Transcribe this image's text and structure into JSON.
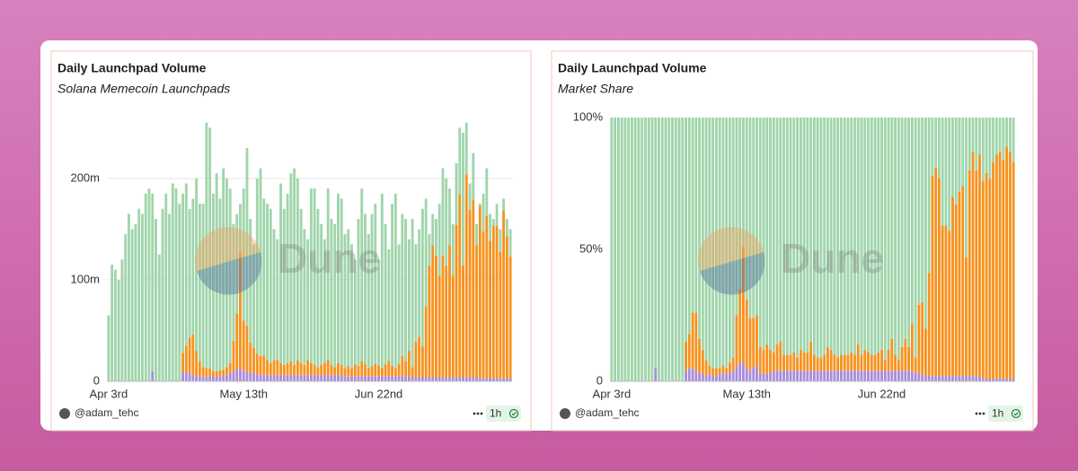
{
  "chart_data": [
    {
      "type": "bar",
      "stacked": true,
      "title": "Daily Launchpad Volume",
      "subtitle": "Solana Memecoin Launchpads",
      "watermark": "Dune",
      "author": "@adam_tehc",
      "refresh": "1h",
      "categories": [
        "Apr 3rd",
        null,
        null,
        null,
        null,
        null,
        null,
        null,
        null,
        null,
        null,
        null,
        null,
        null,
        null,
        null,
        null,
        null,
        null,
        null,
        null,
        null,
        null,
        null,
        null,
        null,
        null,
        null,
        null,
        null,
        null,
        null,
        null,
        null,
        null,
        null,
        null,
        null,
        null,
        null,
        "May 13th",
        null,
        null,
        null,
        null,
        null,
        null,
        null,
        null,
        null,
        null,
        null,
        null,
        null,
        null,
        null,
        null,
        null,
        null,
        null,
        null,
        null,
        null,
        null,
        null,
        null,
        null,
        null,
        null,
        null,
        null,
        null,
        null,
        null,
        null,
        null,
        null,
        null,
        null,
        null,
        "Jun 22nd",
        null,
        null,
        null,
        null,
        null,
        null,
        null,
        null,
        null,
        null,
        null,
        null,
        null,
        null,
        null,
        null,
        null,
        null,
        null,
        null,
        null,
        null,
        null,
        null,
        null,
        null,
        null,
        null,
        null,
        null,
        null,
        null,
        null,
        null,
        null,
        null,
        null,
        null,
        null
      ],
      "ylim": [
        0,
        260
      ],
      "yticks": [
        0,
        {
          "value": 100,
          "label": "100m"
        },
        {
          "value": 200,
          "label": "200m"
        }
      ],
      "grid": true,
      "series": [
        {
          "color": "#a98bdc",
          "values": [
            0,
            0,
            0,
            0,
            0,
            0,
            0,
            0,
            0,
            0,
            0,
            0,
            0,
            10,
            0,
            0,
            0,
            0,
            0,
            0,
            0,
            0,
            8,
            10,
            8,
            6,
            5,
            5,
            4,
            5,
            5,
            5,
            5,
            5,
            6,
            6,
            8,
            10,
            12,
            13,
            10,
            10,
            8,
            8,
            7,
            7,
            6,
            6,
            6,
            6,
            6,
            6,
            6,
            6,
            6,
            6,
            6,
            6,
            6,
            6,
            6,
            6,
            6,
            6,
            6,
            6,
            6,
            6,
            6,
            6,
            5,
            5,
            5,
            5,
            5,
            5,
            5,
            5,
            5,
            5,
            5,
            5,
            5,
            5,
            5,
            5,
            5,
            5,
            5,
            5,
            4,
            4,
            4,
            4,
            4,
            4,
            4,
            4,
            4,
            4,
            4,
            4,
            4,
            4,
            4,
            4,
            4,
            4,
            4,
            4,
            3,
            3,
            3,
            3,
            3,
            3,
            3,
            3,
            3,
            3
          ]
        },
        {
          "color": "#f7921e",
          "values": [
            0,
            0,
            0,
            0,
            0,
            0,
            0,
            0,
            0,
            0,
            0,
            0,
            0,
            0,
            0,
            0,
            0,
            0,
            0,
            0,
            0,
            0,
            20,
            25,
            35,
            40,
            25,
            15,
            10,
            8,
            8,
            5,
            5,
            6,
            5,
            8,
            10,
            30,
            55,
            115,
            50,
            45,
            30,
            25,
            20,
            18,
            20,
            15,
            12,
            15,
            15,
            12,
            10,
            12,
            14,
            10,
            15,
            12,
            10,
            15,
            12,
            10,
            8,
            10,
            12,
            15,
            10,
            8,
            12,
            10,
            8,
            10,
            8,
            12,
            10,
            15,
            12,
            8,
            10,
            12,
            10,
            8,
            12,
            15,
            10,
            8,
            12,
            20,
            15,
            25,
            10,
            35,
            40,
            30,
            70,
            110,
            130,
            120,
            100,
            120,
            110,
            130,
            100,
            150,
            180,
            110,
            200,
            165,
            175,
            130,
            170,
            145,
            160,
            135,
            150,
            150,
            125,
            165,
            140,
            120
          ]
        },
        {
          "color": "#a0d5ab",
          "values": [
            65,
            115,
            110,
            100,
            120,
            145,
            165,
            150,
            155,
            170,
            165,
            185,
            190,
            175,
            160,
            125,
            170,
            185,
            165,
            195,
            190,
            175,
            157,
            160,
            127,
            134,
            170,
            155,
            161,
            242,
            237,
            175,
            195,
            169,
            199,
            186,
            172,
            115,
            98,
            47,
            130,
            175,
            122,
            102,
            173,
            185,
            154,
            154,
            152,
            129,
            119,
            177,
            154,
            167,
            185,
            194,
            179,
            152,
            134,
            119,
            172,
            174,
            156,
            139,
            122,
            169,
            144,
            141,
            167,
            164,
            132,
            135,
            122,
            103,
            145,
            170,
            148,
            132,
            150,
            158,
            105,
            172,
            138,
            110,
            160,
            172,
            118,
            140,
            140,
            110,
            146,
            96,
            106,
            136,
            106,
            31,
            31,
            36,
            71,
            86,
            86,
            56,
            51,
            61,
            66,
            131,
            51,
            26,
            46,
            21,
            2,
            37,
            47,
            27,
            7,
            22,
            22,
            12,
            17,
            27
          ]
        }
      ]
    },
    {
      "type": "bar",
      "stacked": true,
      "title": "Daily Launchpad Volume",
      "subtitle": "Market Share",
      "watermark": "Dune",
      "author": "@adam_tehc",
      "refresh": "1h",
      "categories": [
        "Apr 3rd",
        null,
        null,
        null,
        null,
        null,
        null,
        null,
        null,
        null,
        null,
        null,
        null,
        null,
        null,
        null,
        null,
        null,
        null,
        null,
        null,
        null,
        null,
        null,
        null,
        null,
        null,
        null,
        null,
        null,
        null,
        null,
        null,
        null,
        null,
        null,
        null,
        null,
        null,
        null,
        "May 13th",
        null,
        null,
        null,
        null,
        null,
        null,
        null,
        null,
        null,
        null,
        null,
        null,
        null,
        null,
        null,
        null,
        null,
        null,
        null,
        null,
        null,
        null,
        null,
        null,
        null,
        null,
        null,
        null,
        null,
        null,
        null,
        null,
        null,
        null,
        null,
        null,
        null,
        null,
        null,
        "Jun 22nd",
        null,
        null,
        null,
        null,
        null,
        null,
        null,
        null,
        null,
        null,
        null,
        null,
        null,
        null,
        null,
        null,
        null,
        null,
        null,
        null,
        null,
        null,
        null,
        null,
        null,
        null,
        null,
        null,
        null,
        null,
        null,
        null,
        null,
        null,
        null,
        null,
        null,
        null,
        null
      ],
      "ylim": [
        0,
        100
      ],
      "yticks": [
        0,
        {
          "value": 50,
          "label": "50%"
        },
        {
          "value": 100,
          "label": "100%"
        }
      ],
      "grid": false,
      "series": [
        {
          "color": "#a98bdc",
          "values": [
            0,
            0,
            0,
            0,
            0,
            0,
            0,
            0,
            0,
            0,
            0,
            0,
            0,
            5,
            0,
            0,
            0,
            0,
            0,
            0,
            0,
            0,
            4,
            5,
            5,
            4,
            3,
            3,
            2,
            3,
            2,
            2,
            3,
            3,
            3,
            3,
            4,
            6,
            7,
            7,
            5,
            4,
            5,
            6,
            3,
            3,
            3,
            3,
            4,
            4,
            4,
            4,
            4,
            4,
            4,
            4,
            4,
            4,
            4,
            4,
            4,
            4,
            4,
            4,
            4,
            4,
            4,
            4,
            4,
            4,
            4,
            4,
            4,
            4,
            4,
            4,
            4,
            4,
            4,
            4,
            4,
            4,
            4,
            4,
            4,
            4,
            4,
            4,
            4,
            4,
            3,
            3,
            3,
            2,
            2,
            2,
            2,
            2,
            2,
            2,
            2,
            2,
            2,
            2,
            2,
            2,
            2,
            2,
            2,
            2,
            1,
            1,
            1,
            1,
            1,
            1,
            1,
            1,
            1,
            1
          ]
        },
        {
          "color": "#f7921e",
          "values": [
            0,
            0,
            0,
            0,
            0,
            0,
            0,
            0,
            0,
            0,
            0,
            0,
            0,
            0,
            0,
            0,
            0,
            0,
            0,
            0,
            0,
            0,
            11,
            13,
            21,
            22,
            13,
            9,
            6,
            3,
            3,
            3,
            2,
            3,
            2,
            4,
            5,
            19,
            28,
            44,
            26,
            20,
            19,
            19,
            10,
            9,
            11,
            9,
            7,
            10,
            11,
            6,
            6,
            6,
            7,
            5,
            8,
            7,
            7,
            11,
            6,
            5,
            5,
            6,
            9,
            8,
            6,
            5,
            6,
            6,
            6,
            7,
            6,
            10,
            6,
            8,
            7,
            6,
            6,
            7,
            8,
            4,
            8,
            12,
            6,
            4,
            9,
            12,
            9,
            18,
            6,
            26,
            27,
            18,
            39,
            76,
            79,
            75,
            57,
            57,
            55,
            68,
            65,
            70,
            72,
            45,
            78,
            85,
            78,
            84,
            75,
            78,
            76,
            82,
            85,
            86,
            83,
            88,
            86,
            82
          ]
        },
        {
          "color": "#a0d5ab",
          "values": [
            100,
            100,
            100,
            100,
            100,
            100,
            100,
            100,
            100,
            100,
            100,
            100,
            100,
            95,
            100,
            100,
            100,
            100,
            100,
            100,
            100,
            100,
            85,
            82,
            74,
            74,
            84,
            88,
            92,
            94,
            95,
            95,
            95,
            94,
            95,
            93,
            91,
            75,
            65,
            49,
            69,
            76,
            76,
            75,
            87,
            88,
            86,
            88,
            89,
            86,
            85,
            90,
            90,
            90,
            89,
            91,
            88,
            89,
            89,
            85,
            90,
            91,
            91,
            90,
            87,
            88,
            90,
            91,
            90,
            90,
            90,
            89,
            90,
            86,
            90,
            88,
            89,
            90,
            90,
            89,
            88,
            92,
            88,
            84,
            90,
            92,
            87,
            84,
            87,
            78,
            91,
            71,
            70,
            80,
            59,
            22,
            19,
            23,
            41,
            41,
            43,
            30,
            33,
            28,
            26,
            53,
            20,
            13,
            20,
            14,
            24,
            21,
            23,
            17,
            14,
            13,
            16,
            11,
            13,
            17
          ]
        }
      ]
    }
  ]
}
